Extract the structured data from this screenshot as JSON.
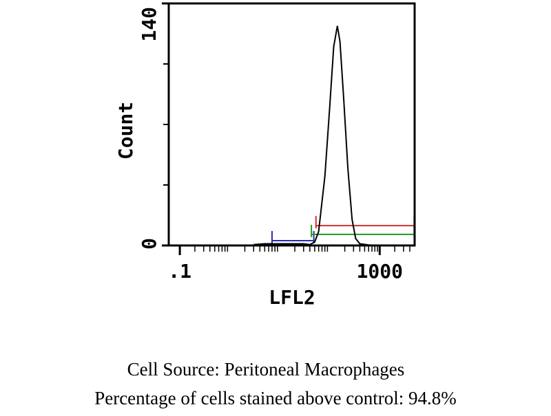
{
  "chart_data": {
    "type": "line",
    "x_label": "LFL2",
    "y_label": "Count",
    "xscale": "log",
    "xlim": [
      0.06,
      5000
    ],
    "ylim": [
      0,
      140
    ],
    "xticks": [
      {
        "value": 0.1,
        "label": ".1"
      },
      1000
    ],
    "minor_xticks": [
      0.2,
      0.3,
      0.4,
      0.5,
      0.6,
      0.7,
      0.8,
      0.9,
      2,
      3,
      4,
      5,
      6,
      7,
      8,
      9,
      20,
      30,
      40,
      50,
      60,
      70,
      80,
      90,
      200,
      300,
      400,
      500,
      600,
      700,
      800,
      900,
      2000,
      3000,
      4000
    ],
    "yticks": [
      0,
      140
    ],
    "minor_yticks": [
      35,
      70,
      105
    ],
    "series": [
      {
        "color": "#000000",
        "x": [
          3,
          5,
          10,
          20,
          30,
          40,
          50,
          60,
          80,
          100,
          120,
          142,
          160,
          190,
          230,
          280,
          330,
          400,
          600,
          1000
        ],
        "values": [
          0.5,
          1,
          1,
          1,
          1,
          0.5,
          2,
          8,
          40,
          80,
          115,
          127,
          118,
          85,
          45,
          15,
          4,
          1,
          0.3,
          0
        ]
      }
    ],
    "markers": [
      {
        "color": "#2b2bb0",
        "x1": 7,
        "x2": 48,
        "level": 2.8
      },
      {
        "color": "#1e9a1e",
        "x1": 43,
        "x2": 4900,
        "level": 6.4
      },
      {
        "color": "#d03030",
        "x1": 53,
        "x2": 4900,
        "level": 11.5
      }
    ]
  },
  "caption": {
    "source": "Cell Source:  Peritoneal Macrophages",
    "percentage": "Percentage of cells stained above control: 94.8%"
  }
}
